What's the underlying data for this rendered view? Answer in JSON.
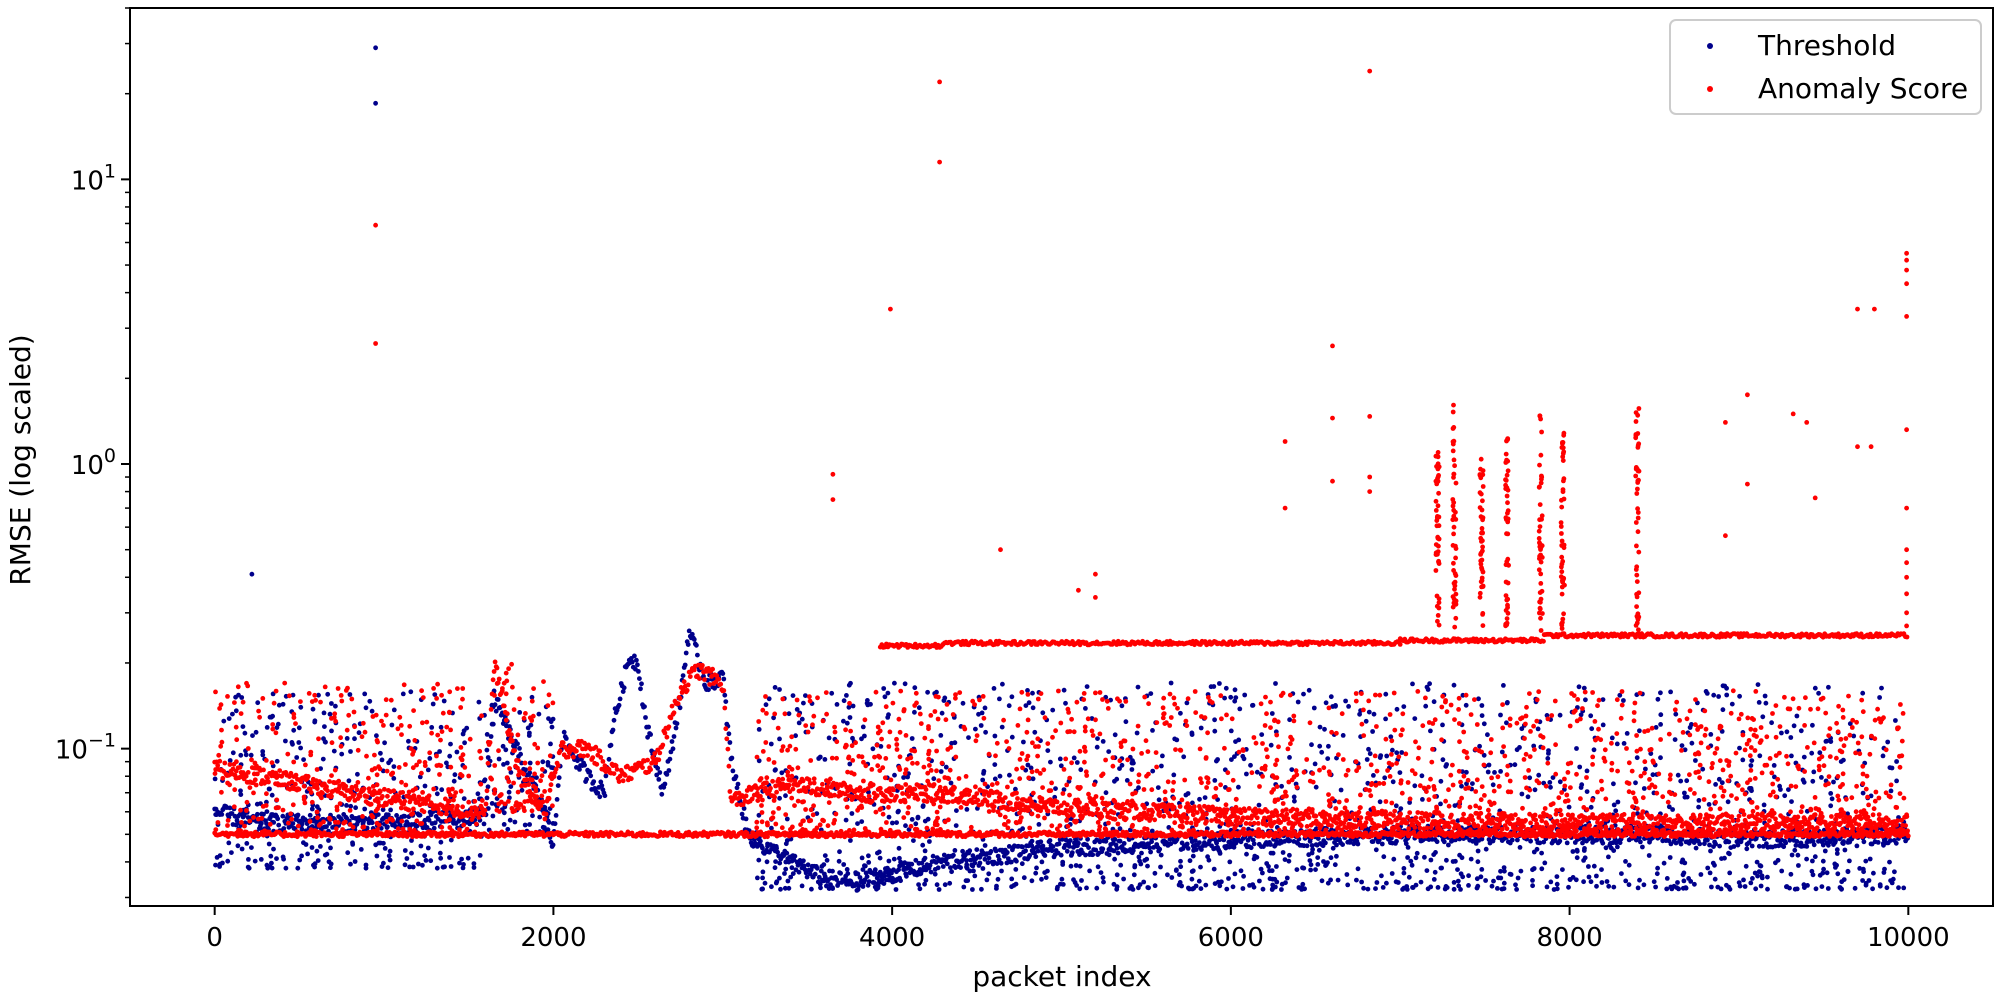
{
  "chart_data": {
    "type": "scatter",
    "title": "",
    "xlabel": "packet index",
    "ylabel": "RMSE (log scaled)",
    "xlim": [
      -500,
      10500
    ],
    "ylim": [
      0.028,
      40
    ],
    "yscale": "log",
    "x_ticks": [
      0,
      2000,
      4000,
      6000,
      8000,
      10000
    ],
    "x_tick_labels": [
      "0",
      "2000",
      "4000",
      "6000",
      "8000",
      "10000"
    ],
    "y_ticks": [
      0.1,
      1,
      10
    ],
    "y_tick_labels": [
      "10",
      "10",
      "10"
    ],
    "y_tick_exponents": [
      "−1",
      "0",
      "1"
    ],
    "grid": false,
    "legend_position": "top-right",
    "series": [
      {
        "name": "Threshold",
        "color": "#00008b",
        "bands": [
          [
            0,
            1600,
            0.038,
            0.16
          ],
          [
            1600,
            2000,
            0.05,
            0.16
          ],
          [
            3200,
            3800,
            0.032,
            0.17
          ],
          [
            3800,
            10000,
            0.032,
            0.17
          ]
        ],
        "trend": [
          [
            0,
            0.06
          ],
          [
            250,
            0.055
          ],
          [
            1000,
            0.055
          ],
          [
            1600,
            0.058
          ],
          [
            1650,
            0.15
          ],
          [
            1750,
            0.11
          ],
          [
            1850,
            0.08
          ],
          [
            1950,
            0.06
          ],
          [
            2000,
            0.045
          ],
          [
            2050,
            0.11
          ],
          [
            2200,
            0.08
          ],
          [
            2300,
            0.07
          ],
          [
            2350,
            0.12
          ],
          [
            2450,
            0.21
          ],
          [
            2500,
            0.2
          ],
          [
            2550,
            0.12
          ],
          [
            2650,
            0.07
          ],
          [
            2750,
            0.15
          ],
          [
            2800,
            0.26
          ],
          [
            2900,
            0.17
          ],
          [
            3000,
            0.18
          ],
          [
            3050,
            0.09
          ],
          [
            3150,
            0.05
          ],
          [
            3250,
            0.045
          ],
          [
            3400,
            0.04
          ],
          [
            3600,
            0.035
          ],
          [
            3800,
            0.034
          ],
          [
            4300,
            0.04
          ],
          [
            5000,
            0.045
          ],
          [
            6000,
            0.048
          ],
          [
            7000,
            0.05
          ],
          [
            8000,
            0.05
          ],
          [
            8500,
            0.05
          ],
          [
            9000,
            0.048
          ],
          [
            10000,
            0.05
          ]
        ],
        "outliers": [
          [
            950,
            29.0
          ],
          [
            950,
            18.5
          ],
          [
            220,
            0.41
          ]
        ]
      },
      {
        "name": "Anomaly Score",
        "color": "#ff0000",
        "bands": [
          [
            0,
            1600,
            0.05,
            0.17
          ],
          [
            1600,
            2000,
            0.06,
            0.2
          ],
          [
            3200,
            3900,
            0.05,
            0.16
          ],
          [
            3900,
            10000,
            0.05,
            0.16
          ]
        ],
        "trend": [
          [
            0,
            0.085
          ],
          [
            300,
            0.08
          ],
          [
            800,
            0.07
          ],
          [
            1600,
            0.06
          ],
          [
            1650,
            0.2
          ],
          [
            1800,
            0.08
          ],
          [
            1950,
            0.06
          ],
          [
            2050,
            0.1
          ],
          [
            2200,
            0.1
          ],
          [
            2400,
            0.08
          ],
          [
            2600,
            0.09
          ],
          [
            2750,
            0.16
          ],
          [
            2850,
            0.19
          ],
          [
            3000,
            0.17
          ],
          [
            3050,
            0.065
          ],
          [
            3200,
            0.07
          ],
          [
            3400,
            0.075
          ],
          [
            3800,
            0.07
          ],
          [
            4300,
            0.07
          ],
          [
            5000,
            0.062
          ],
          [
            6000,
            0.058
          ],
          [
            7000,
            0.056
          ],
          [
            8000,
            0.055
          ],
          [
            9000,
            0.055
          ],
          [
            10000,
            0.055
          ]
        ],
        "floor": [
          [
            0,
            0.05
          ],
          [
            10000,
            0.05
          ]
        ],
        "plateaus": [
          [
            3930,
            4300,
            0.23
          ],
          [
            4300,
            7000,
            0.235
          ],
          [
            7000,
            7850,
            0.24
          ],
          [
            7850,
            10000,
            0.25
          ]
        ],
        "outliers": [
          [
            950,
            6.9
          ],
          [
            950,
            2.65
          ],
          [
            4280,
            22.0
          ],
          [
            4280,
            11.5
          ],
          [
            6820,
            24.0
          ],
          [
            3990,
            3.5
          ],
          [
            3650,
            0.92
          ],
          [
            3650,
            0.75
          ],
          [
            4640,
            0.5
          ],
          [
            5100,
            0.36
          ],
          [
            5200,
            0.41
          ],
          [
            5200,
            0.34
          ],
          [
            6320,
            1.2
          ],
          [
            6320,
            0.7
          ],
          [
            6600,
            2.6
          ],
          [
            6600,
            1.45
          ],
          [
            6600,
            0.87
          ],
          [
            6820,
            1.47
          ],
          [
            6820,
            0.9
          ],
          [
            6820,
            0.8
          ],
          [
            9050,
            1.75
          ],
          [
            9050,
            0.85
          ],
          [
            8920,
            1.4
          ],
          [
            8920,
            0.56
          ],
          [
            9320,
            1.5
          ],
          [
            9400,
            1.4
          ],
          [
            9450,
            0.76
          ],
          [
            9700,
            3.5
          ],
          [
            9700,
            1.15
          ],
          [
            9800,
            3.5
          ],
          [
            9780,
            1.15
          ],
          [
            9990,
            5.5
          ],
          [
            9990,
            5.2
          ],
          [
            9990,
            4.8
          ],
          [
            9990,
            4.3
          ],
          [
            9990,
            3.3
          ],
          [
            9990,
            1.32
          ],
          [
            9990,
            0.7
          ],
          [
            9990,
            0.5
          ],
          [
            9990,
            0.45
          ],
          [
            9990,
            0.4
          ],
          [
            9990,
            0.35
          ],
          [
            9990,
            0.3
          ],
          [
            9990,
            0.27
          ]
        ],
        "spikes": [
          [
            7220,
            0.26,
            1.22
          ],
          [
            7320,
            0.26,
            1.65
          ],
          [
            7480,
            0.26,
            1.07
          ],
          [
            7630,
            0.26,
            1.25
          ],
          [
            7830,
            0.26,
            1.72
          ],
          [
            7960,
            0.26,
            1.4
          ],
          [
            8400,
            0.26,
            1.7
          ]
        ]
      }
    ]
  }
}
